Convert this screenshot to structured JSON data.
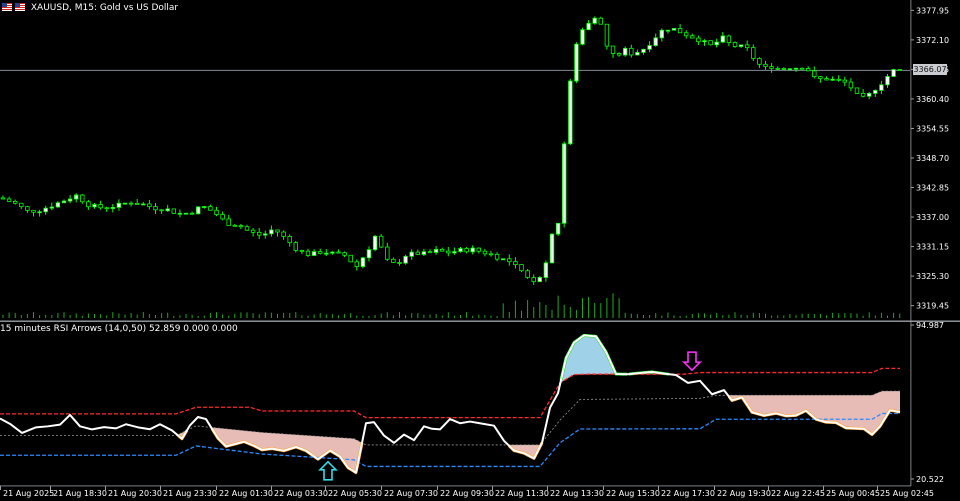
{
  "window": {
    "symbol_title": "XAUUSD, M15:  Gold vs US Dollar",
    "indicator_title": "15 minutes RSI Arrows (14,0,50) 52.859 0.000 0.000",
    "current_price_tag": "3366.07"
  },
  "price_axis": {
    "labels": [
      "3377.95",
      "3372.10",
      "3366.25",
      "3360.40",
      "3354.55",
      "3348.70",
      "3342.85",
      "3337.00",
      "3331.15",
      "3325.30",
      "3319.45"
    ]
  },
  "indicator_axis": {
    "labels": [
      "94.987",
      "20.522"
    ]
  },
  "time_axis": {
    "labels": [
      "21 Aug 2025",
      "21 Aug 18:30",
      "21 Aug 20:30",
      "21 Aug 23:30",
      "22 Aug 01:30",
      "22 Aug 03:30",
      "22 Aug 05:30",
      "22 Aug 07:30",
      "22 Aug 09:30",
      "22 Aug 11:30",
      "22 Aug 13:30",
      "22 Aug 15:30",
      "22 Aug 17:30",
      "22 Aug 19:30",
      "22 Aug 22:45",
      "25 Aug 00:45",
      "25 Aug 02:45"
    ]
  },
  "colors": {
    "bull_candle": "#ffffff",
    "bear_candle": "#000000",
    "candle_outline": "#00ff00",
    "rsi_line": "#ffffff",
    "upper_band": "#ff2a2a",
    "lower_band": "#2a8cff",
    "middle_band": "#9a9a9a",
    "overbought_fill": "#a8dcf6",
    "overbought_edge": "#22dd22",
    "oversold_fill": "#f4c6c0",
    "oversold_edge": "#ff9a1e",
    "sell_arrow": "#ff30ff",
    "buy_arrow": "#38d8e8",
    "price_line": "#7f8a96",
    "volume": "#1ea91e"
  },
  "chart_data": [
    {
      "type": "candlestick",
      "symbol": "XAUUSD",
      "timeframe": "M15",
      "ylim": [
        3317,
        3380
      ],
      "current_price": 3366.07,
      "close_path": [
        [
          0,
          3340.8
        ],
        [
          14,
          3339.8
        ],
        [
          28,
          3338.1
        ],
        [
          40,
          3338.4
        ],
        [
          52,
          3339.3
        ],
        [
          64,
          3340.3
        ],
        [
          76,
          3341.3
        ],
        [
          90,
          3339.2
        ],
        [
          104,
          3338.8
        ],
        [
          118,
          3339.3
        ],
        [
          130,
          3340.0
        ],
        [
          142,
          3339.6
        ],
        [
          154,
          3338.8
        ],
        [
          166,
          3338.6
        ],
        [
          178,
          3337.7
        ],
        [
          190,
          3337.8
        ],
        [
          202,
          3339.2
        ],
        [
          214,
          3338.0
        ],
        [
          226,
          3335.8
        ],
        [
          238,
          3335.5
        ],
        [
          250,
          3334.0
        ],
        [
          262,
          3333.3
        ],
        [
          274,
          3334.7
        ],
        [
          286,
          3332.6
        ],
        [
          298,
          3330.4
        ],
        [
          310,
          3329.5
        ],
        [
          322,
          3330.2
        ],
        [
          334,
          3329.7
        ],
        [
          346,
          3329.4
        ],
        [
          356,
          3327.0
        ],
        [
          368,
          3330.5
        ],
        [
          376,
          3333.5
        ],
        [
          386,
          3328.4
        ],
        [
          396,
          3327.5
        ],
        [
          406,
          3329.5
        ],
        [
          416,
          3329.8
        ],
        [
          426,
          3329.7
        ],
        [
          436,
          3330.3
        ],
        [
          448,
          3330.0
        ],
        [
          460,
          3330.4
        ],
        [
          472,
          3330.6
        ],
        [
          484,
          3330.0
        ],
        [
          496,
          3329.2
        ],
        [
          506,
          3328.4
        ],
        [
          516,
          3327.2
        ],
        [
          526,
          3325.0
        ],
        [
          534,
          3324.5
        ],
        [
          544,
          3326.0
        ],
        [
          552,
          3334.0
        ],
        [
          560,
          3336.5
        ],
        [
          566,
          3358.0
        ],
        [
          572,
          3366.0
        ],
        [
          578,
          3373.0
        ],
        [
          584,
          3374.5
        ],
        [
          590,
          3376.0
        ],
        [
          596,
          3377.0
        ],
        [
          602,
          3374.5
        ],
        [
          608,
          3370.0
        ],
        [
          614,
          3369.0
        ],
        [
          620,
          3369.4
        ],
        [
          626,
          3370.2
        ],
        [
          632,
          3369.3
        ],
        [
          638,
          3369.8
        ],
        [
          644,
          3370.4
        ],
        [
          650,
          3371.5
        ],
        [
          656,
          3372.8
        ],
        [
          664,
          3374.3
        ],
        [
          672,
          3374.4
        ],
        [
          680,
          3373.7
        ],
        [
          688,
          3373.0
        ],
        [
          696,
          3372.4
        ],
        [
          704,
          3371.6
        ],
        [
          712,
          3370.8
        ],
        [
          722,
          3372.6
        ],
        [
          728,
          3371.5
        ],
        [
          736,
          3370.8
        ],
        [
          746,
          3370.6
        ],
        [
          756,
          3367.8
        ],
        [
          764,
          3366.4
        ],
        [
          772,
          3366.9
        ],
        [
          780,
          3366.3
        ],
        [
          790,
          3366.7
        ],
        [
          798,
          3366.6
        ],
        [
          806,
          3367.0
        ],
        [
          812,
          3364.6
        ],
        [
          820,
          3364.3
        ],
        [
          828,
          3364.4
        ],
        [
          836,
          3364.0
        ],
        [
          844,
          3363.8
        ],
        [
          852,
          3362.5
        ],
        [
          860,
          3360.2
        ],
        [
          868,
          3361.0
        ],
        [
          876,
          3362.6
        ],
        [
          884,
          3364.0
        ],
        [
          892,
          3366.0
        ],
        [
          900,
          3366.07
        ]
      ],
      "volume_note": "volume histogram shown as ticks"
    },
    {
      "type": "line",
      "title": "15 minutes RSI Arrows (14,0,50) 52.859 0.000 0.000",
      "ylim": [
        20.522,
        94.987
      ],
      "series": [
        {
          "name": "RSI",
          "x": [
            0,
            10,
            22,
            36,
            48,
            60,
            70,
            80,
            92,
            104,
            116,
            126,
            138,
            150,
            160,
            172,
            182,
            190,
            198,
            206,
            212,
            218,
            226,
            234,
            244,
            254,
            262,
            272,
            284,
            296,
            306,
            318,
            330,
            340,
            348,
            356,
            366,
            374,
            384,
            394,
            404,
            414,
            424,
            432,
            440,
            450,
            460,
            470,
            482,
            494,
            504,
            514,
            524,
            534,
            542,
            550,
            558,
            566,
            574,
            584,
            596,
            606,
            616,
            628,
            640,
            652,
            664,
            676,
            688,
            700,
            712,
            724,
            732,
            742,
            752,
            764,
            776,
            786,
            796,
            806,
            816,
            826,
            836,
            846,
            856,
            864,
            872,
            880,
            890,
            900
          ],
          "values": [
            49.8,
            47.2,
            42.8,
            45.5,
            46.0,
            46.8,
            51.5,
            46.0,
            44.5,
            45.6,
            45.0,
            47.0,
            45.5,
            44.6,
            47.0,
            44.0,
            40.0,
            46.5,
            50.5,
            49.5,
            44.8,
            40.2,
            36.3,
            37.3,
            38.6,
            36.6,
            34.6,
            35.2,
            34.2,
            36.0,
            34.2,
            30.1,
            34.3,
            31.4,
            26.0,
            23.6,
            47.5,
            48.0,
            41.5,
            38.0,
            42.0,
            39.3,
            46.0,
            44.8,
            44.5,
            49.5,
            47.5,
            48.3,
            47.3,
            46.3,
            39.0,
            34.3,
            33.0,
            30.5,
            38.0,
            55.0,
            62.0,
            79.0,
            86.5,
            90.0,
            89.5,
            82.0,
            71.3,
            71.2,
            71.8,
            72.3,
            71.5,
            70.8,
            67.0,
            68.0,
            61.5,
            63.5,
            58.5,
            60.0,
            52.8,
            51.2,
            52.3,
            51.0,
            51.3,
            53.6,
            49.4,
            48.0,
            47.8,
            45.2,
            45.0,
            44.8,
            42.0,
            46.0,
            53.8,
            52.9
          ]
        },
        {
          "name": "Upper level",
          "x": [
            0,
            176,
            196,
            250,
            262,
            354,
            366,
            540,
            560,
            574,
            590,
            684,
            700,
            872,
            882,
            900
          ],
          "values": [
            52.0,
            52.0,
            55.2,
            55.2,
            53.4,
            53.4,
            50.2,
            50.2,
            67.0,
            71.0,
            71.2,
            71.2,
            72.0,
            72.0,
            74.0,
            74.0
          ]
        },
        {
          "name": "Middle level",
          "x": [
            0,
            176,
            196,
            262,
            354,
            366,
            540,
            560,
            580,
            700,
            716,
            872,
            882,
            900
          ],
          "values": [
            41.5,
            41.5,
            46.2,
            43.0,
            40.0,
            37.0,
            37.0,
            49.0,
            59.0,
            59.5,
            61.0,
            61.0,
            63.0,
            63.0
          ]
        },
        {
          "name": "Lower level",
          "x": [
            0,
            176,
            196,
            262,
            354,
            366,
            540,
            560,
            580,
            700,
            716,
            872,
            882,
            900
          ],
          "values": [
            32.0,
            32.0,
            36.5,
            32.6,
            29.8,
            26.6,
            26.6,
            38.0,
            44.7,
            44.8,
            49.4,
            49.4,
            52.2,
            52.2
          ]
        }
      ],
      "arrows": [
        {
          "direction": "up",
          "x": 328,
          "value": 24.0
        },
        {
          "direction": "down",
          "x": 692,
          "value": 78.0
        }
      ]
    }
  ]
}
